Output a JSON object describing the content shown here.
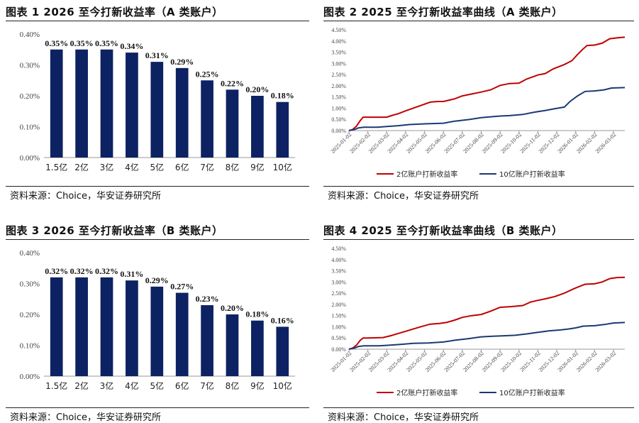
{
  "source_text": "资料来源：Choice，华安证券研究所",
  "panels": [
    {
      "title": "图表 1 2026 至今打新收益率（A 类账户）"
    },
    {
      "title": "图表 2 2025 至今打新收益率曲线（A 类账户）"
    },
    {
      "title": "图表 3 2026 至今打新收益率（B 类账户）"
    },
    {
      "title": "图表 4 2025 至今打新收益率曲线（B 类账户）"
    }
  ],
  "colors": {
    "bar": "#0d2263",
    "line_2yi": "#c00000",
    "line_10yi": "#1a3a73",
    "axis": "#888888",
    "grid": "#d9d9d9"
  },
  "chart_data": [
    {
      "type": "bar",
      "title": "图表 1 2026 至今打新收益率（A 类账户）",
      "categories": [
        "1.5亿",
        "2亿",
        "3亿",
        "4亿",
        "5亿",
        "6亿",
        "7亿",
        "8亿",
        "9亿",
        "10亿"
      ],
      "values": [
        0.35,
        0.35,
        0.35,
        0.34,
        0.31,
        0.29,
        0.25,
        0.22,
        0.2,
        0.18
      ],
      "value_labels": [
        "0.35%",
        "0.35%",
        "0.35%",
        "0.34%",
        "0.31%",
        "0.29%",
        "0.25%",
        "0.22%",
        "0.20%",
        "0.18%"
      ],
      "y_ticks": [
        "0.00%",
        "0.10%",
        "0.20%",
        "0.30%",
        "0.40%"
      ],
      "ylim": [
        0,
        0.4
      ],
      "ylabel": "",
      "xlabel": ""
    },
    {
      "type": "line",
      "title": "图表 2 2025 至今打新收益率曲线（A 类账户）",
      "x_ticks": [
        "2025-01-02",
        "2025-02-02",
        "2025-03-02",
        "2025-04-02",
        "2025-05-02",
        "2025-06-02",
        "2025-07-02",
        "2025-08-02",
        "2025-09-02",
        "2025-10-02",
        "2025-11-02",
        "2025-12-02",
        "2026-01-02",
        "2026-02-02",
        "2026-03-02"
      ],
      "y_ticks": [
        "0.00%",
        "0.50%",
        "1.00%",
        "1.50%",
        "2.00%",
        "2.50%",
        "3.00%",
        "3.50%",
        "4.00%",
        "4.50%"
      ],
      "ylim": [
        0,
        4.5
      ],
      "xlim": [
        0,
        14.6
      ],
      "series": [
        {
          "name": "2亿账户打新收益率",
          "points": [
            [
              0,
              0
            ],
            [
              0.2,
              0.05
            ],
            [
              0.4,
              0.2
            ],
            [
              0.6,
              0.45
            ],
            [
              0.75,
              0.6
            ],
            [
              1.0,
              0.6
            ],
            [
              1.6,
              0.6
            ],
            [
              2.0,
              0.6
            ],
            [
              2.3,
              0.68
            ],
            [
              2.6,
              0.75
            ],
            [
              3.0,
              0.88
            ],
            [
              3.4,
              1.0
            ],
            [
              3.8,
              1.12
            ],
            [
              4.3,
              1.27
            ],
            [
              4.7,
              1.3
            ],
            [
              5.0,
              1.3
            ],
            [
              5.6,
              1.42
            ],
            [
              6.0,
              1.55
            ],
            [
              6.6,
              1.65
            ],
            [
              7.0,
              1.72
            ],
            [
              7.5,
              1.82
            ],
            [
              8.0,
              2.02
            ],
            [
              8.5,
              2.1
            ],
            [
              9.0,
              2.12
            ],
            [
              9.4,
              2.3
            ],
            [
              10.0,
              2.48
            ],
            [
              10.4,
              2.55
            ],
            [
              10.8,
              2.75
            ],
            [
              11.4,
              2.95
            ],
            [
              11.8,
              3.12
            ],
            [
              12.1,
              3.4
            ],
            [
              12.4,
              3.65
            ],
            [
              12.6,
              3.8
            ],
            [
              13.0,
              3.82
            ],
            [
              13.4,
              3.9
            ],
            [
              13.8,
              4.1
            ],
            [
              14.3,
              4.15
            ],
            [
              14.6,
              4.17
            ]
          ]
        },
        {
          "name": "10亿账户打新收益率",
          "points": [
            [
              0,
              0
            ],
            [
              0.3,
              0.05
            ],
            [
              0.5,
              0.12
            ],
            [
              0.8,
              0.15
            ],
            [
              1.5,
              0.15
            ],
            [
              2.0,
              0.18
            ],
            [
              2.6,
              0.22
            ],
            [
              3.2,
              0.27
            ],
            [
              4.0,
              0.3
            ],
            [
              5.0,
              0.33
            ],
            [
              5.6,
              0.42
            ],
            [
              6.4,
              0.5
            ],
            [
              7.0,
              0.58
            ],
            [
              7.6,
              0.62
            ],
            [
              8.0,
              0.65
            ],
            [
              8.5,
              0.67
            ],
            [
              9.2,
              0.72
            ],
            [
              9.8,
              0.82
            ],
            [
              10.4,
              0.9
            ],
            [
              10.9,
              0.98
            ],
            [
              11.4,
              1.05
            ],
            [
              11.7,
              1.3
            ],
            [
              12.1,
              1.55
            ],
            [
              12.5,
              1.75
            ],
            [
              13.0,
              1.77
            ],
            [
              13.5,
              1.82
            ],
            [
              13.9,
              1.9
            ],
            [
              14.6,
              1.92
            ]
          ]
        }
      ]
    },
    {
      "type": "bar",
      "title": "图表 3 2026 至今打新收益率（B 类账户）",
      "categories": [
        "1.5亿",
        "2亿",
        "3亿",
        "4亿",
        "5亿",
        "6亿",
        "7亿",
        "8亿",
        "9亿",
        "10亿"
      ],
      "values": [
        0.32,
        0.32,
        0.32,
        0.31,
        0.29,
        0.27,
        0.23,
        0.2,
        0.18,
        0.16
      ],
      "value_labels": [
        "0.32%",
        "0.32%",
        "0.32%",
        "0.31%",
        "0.29%",
        "0.27%",
        "0.23%",
        "0.20%",
        "0.18%",
        "0.16%"
      ],
      "y_ticks": [
        "0.00%",
        "0.10%",
        "0.20%",
        "0.30%",
        "0.40%"
      ],
      "ylim": [
        0,
        0.4
      ],
      "ylabel": "",
      "xlabel": ""
    },
    {
      "type": "line",
      "title": "图表 4 2025 至今打新收益率曲线（B 类账户）",
      "x_ticks": [
        "2025-01-02",
        "2025-02-02",
        "2025-03-02",
        "2025-04-02",
        "2025-05-02",
        "2025-06-02",
        "2025-07-02",
        "2025-08-02",
        "2025-09-02",
        "2025-10-02",
        "2025-11-02",
        "2025-12-02",
        "2026-01-02",
        "2026-02-02",
        "2026-03-02"
      ],
      "y_ticks": [
        "0.00%",
        "0.50%",
        "1.00%",
        "1.50%",
        "2.00%",
        "2.50%",
        "3.00%",
        "3.50%",
        "4.00%",
        "4.50%"
      ],
      "ylim": [
        0,
        4.5
      ],
      "xlim": [
        0,
        14.6
      ],
      "series": [
        {
          "name": "2亿账户打新收益率",
          "points": [
            [
              0,
              0
            ],
            [
              0.2,
              0.05
            ],
            [
              0.4,
              0.18
            ],
            [
              0.6,
              0.4
            ],
            [
              0.75,
              0.5
            ],
            [
              1.0,
              0.5
            ],
            [
              1.8,
              0.52
            ],
            [
              2.2,
              0.6
            ],
            [
              2.6,
              0.7
            ],
            [
              3.0,
              0.8
            ],
            [
              3.4,
              0.9
            ],
            [
              3.8,
              1.0
            ],
            [
              4.3,
              1.12
            ],
            [
              4.8,
              1.15
            ],
            [
              5.2,
              1.2
            ],
            [
              5.6,
              1.3
            ],
            [
              6.0,
              1.42
            ],
            [
              6.5,
              1.5
            ],
            [
              7.0,
              1.55
            ],
            [
              7.5,
              1.7
            ],
            [
              8.0,
              1.87
            ],
            [
              8.6,
              1.9
            ],
            [
              9.2,
              1.95
            ],
            [
              9.6,
              2.1
            ],
            [
              10.0,
              2.18
            ],
            [
              10.4,
              2.25
            ],
            [
              10.9,
              2.35
            ],
            [
              11.4,
              2.5
            ],
            [
              11.9,
              2.7
            ],
            [
              12.2,
              2.8
            ],
            [
              12.5,
              2.9
            ],
            [
              13.0,
              2.92
            ],
            [
              13.4,
              3.0
            ],
            [
              13.8,
              3.15
            ],
            [
              14.2,
              3.2
            ],
            [
              14.6,
              3.21
            ]
          ]
        },
        {
          "name": "10亿账户打新收益率",
          "points": [
            [
              0,
              0
            ],
            [
              0.3,
              0.05
            ],
            [
              0.5,
              0.12
            ],
            [
              0.8,
              0.15
            ],
            [
              1.6,
              0.15
            ],
            [
              2.2,
              0.18
            ],
            [
              2.8,
              0.22
            ],
            [
              3.4,
              0.26
            ],
            [
              4.2,
              0.28
            ],
            [
              5.0,
              0.32
            ],
            [
              5.6,
              0.4
            ],
            [
              6.3,
              0.47
            ],
            [
              7.0,
              0.55
            ],
            [
              7.6,
              0.58
            ],
            [
              8.2,
              0.6
            ],
            [
              8.8,
              0.62
            ],
            [
              9.4,
              0.68
            ],
            [
              10.0,
              0.75
            ],
            [
              10.6,
              0.82
            ],
            [
              11.2,
              0.86
            ],
            [
              11.6,
              0.9
            ],
            [
              12.0,
              0.95
            ],
            [
              12.4,
              1.03
            ],
            [
              13.0,
              1.05
            ],
            [
              13.5,
              1.1
            ],
            [
              14.0,
              1.17
            ],
            [
              14.6,
              1.19
            ]
          ]
        }
      ]
    }
  ]
}
